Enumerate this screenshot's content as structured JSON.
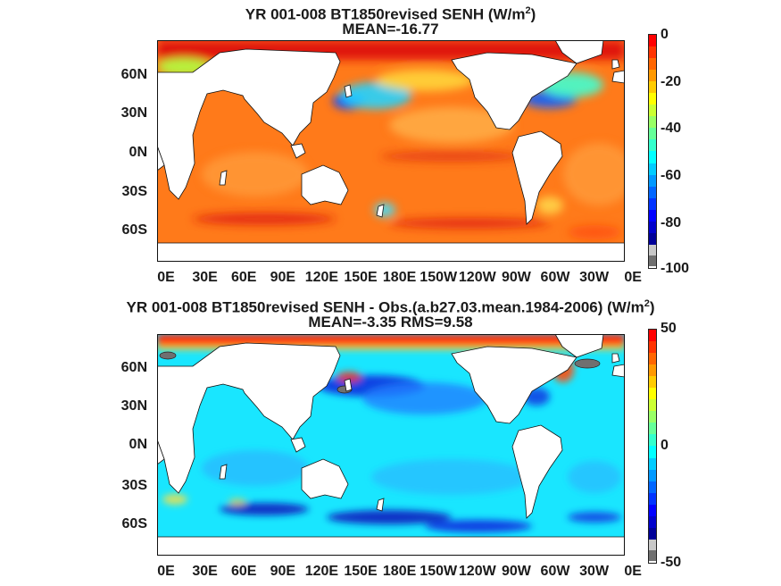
{
  "panels": [
    {
      "title_line1_pre": "YR 001-008 BT1850revised  SENH (W/m",
      "title_line1_sup": "2",
      "title_line1_post": ")",
      "title_line2": "MEAN=-16.77",
      "lat_labels": [
        "60N",
        "30N",
        "0N",
        "30S",
        "60S"
      ],
      "lon_labels": [
        "0E",
        "30E",
        "60E",
        "90E",
        "120E",
        "150E",
        "180E",
        "150W",
        "120W",
        "90W",
        "60W",
        "30W",
        "0E"
      ],
      "colorbar_labels": [
        "0",
        "-20",
        "-40",
        "-60",
        "-80",
        "-100"
      ],
      "colorbar_range": [
        -100,
        0
      ],
      "ocean_base_color": "#ff7a1a"
    },
    {
      "title_line1_pre": "YR 001-008 BT1850revised SENH - Obs.(a.b27.03.mean.1984-2006) (W/m",
      "title_line1_sup": "2",
      "title_line1_post": ")",
      "title_line2": "MEAN=-3.35 RMS=9.58",
      "lat_labels": [
        "60N",
        "30N",
        "0N",
        "30S",
        "60S"
      ],
      "lon_labels": [
        "0E",
        "30E",
        "60E",
        "90E",
        "120E",
        "150E",
        "180E",
        "150W",
        "120W",
        "90W",
        "60W",
        "30W",
        "0E"
      ],
      "colorbar_labels": [
        "50",
        "0",
        "-50"
      ],
      "colorbar_range": [
        -50,
        50
      ],
      "ocean_base_color": "#19e6ff"
    }
  ],
  "colors": {
    "land": "#ffffff",
    "coast": "#111111",
    "missing": "#707070",
    "missing_light": "#c8c8c8"
  }
}
